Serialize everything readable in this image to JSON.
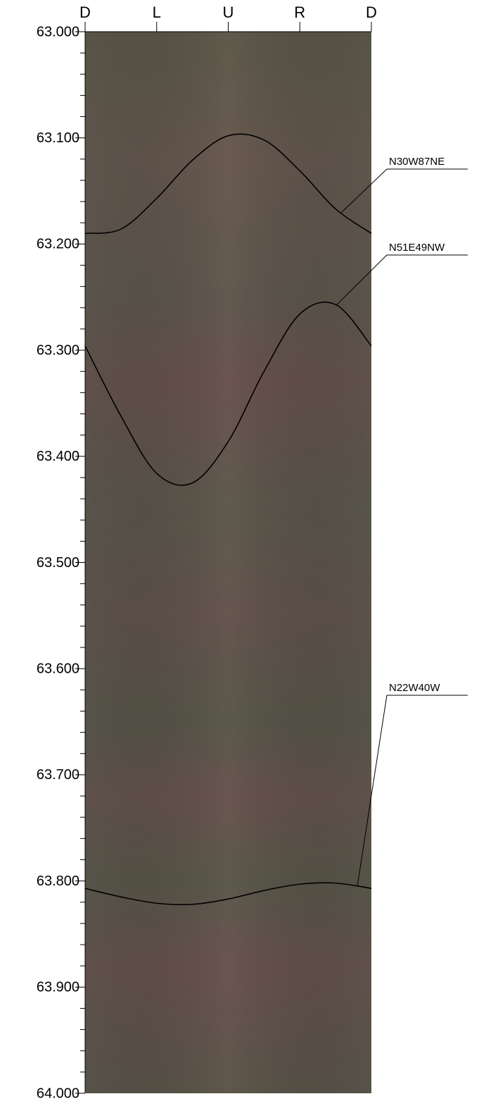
{
  "chart_data": {
    "type": "borehole",
    "xlim": [
      0,
      360
    ],
    "xticks": [
      {
        "value": 0,
        "label": "D"
      },
      {
        "value": 90,
        "label": "L"
      },
      {
        "value": 180,
        "label": "U"
      },
      {
        "value": 270,
        "label": "R"
      },
      {
        "value": 360,
        "label": "D"
      }
    ],
    "ylim": [
      63,
      64
    ],
    "yticks": [
      {
        "value": 63.0,
        "label": "63.000"
      },
      {
        "value": 63.1,
        "label": "63.100"
      },
      {
        "value": 63.2,
        "label": "63.200"
      },
      {
        "value": 63.3,
        "label": "63.300"
      },
      {
        "value": 63.4,
        "label": "63.400"
      },
      {
        "value": 63.5,
        "label": "63.500"
      },
      {
        "value": 63.6,
        "label": "63.600"
      },
      {
        "value": 63.7,
        "label": "63.700"
      },
      {
        "value": 63.8,
        "label": "63.800"
      },
      {
        "value": 63.9,
        "label": "63.900"
      },
      {
        "value": 64.0,
        "label": "64.000"
      }
    ],
    "minor_yticks": [
      63.02,
      63.04,
      63.06,
      63.08,
      63.12,
      63.14,
      63.16,
      63.18,
      63.22,
      63.24,
      63.26,
      63.28,
      63.32,
      63.34,
      63.36,
      63.38,
      63.42,
      63.44,
      63.46,
      63.48,
      63.52,
      63.54,
      63.56,
      63.58,
      63.62,
      63.64,
      63.66,
      63.68,
      63.72,
      63.74,
      63.76,
      63.78,
      63.82,
      63.84,
      63.86,
      63.88,
      63.92,
      63.94,
      63.96,
      63.98
    ],
    "y_inverted": true,
    "series": [
      {
        "name": "N30W87NE",
        "color": "#000000",
        "x": [
          0,
          45,
          90,
          135,
          180,
          225,
          270,
          315,
          360
        ],
        "values": [
          63.19,
          63.186,
          63.157,
          63.121,
          63.098,
          63.102,
          63.131,
          63.167,
          63.19
        ]
      },
      {
        "name": "N51E49NW",
        "color": "#000000",
        "x": [
          0,
          45,
          90,
          135,
          180,
          225,
          270,
          315,
          360
        ],
        "values": [
          63.296,
          63.362,
          63.416,
          63.425,
          63.386,
          63.32,
          63.266,
          63.257,
          63.296
        ]
      },
      {
        "name": "N22W40W",
        "color": "#000000",
        "x": [
          0,
          45,
          90,
          135,
          180,
          225,
          270,
          315,
          360
        ],
        "values": [
          63.807,
          63.815,
          63.821,
          63.822,
          63.817,
          63.809,
          63.803,
          63.802,
          63.807
        ]
      }
    ]
  }
}
